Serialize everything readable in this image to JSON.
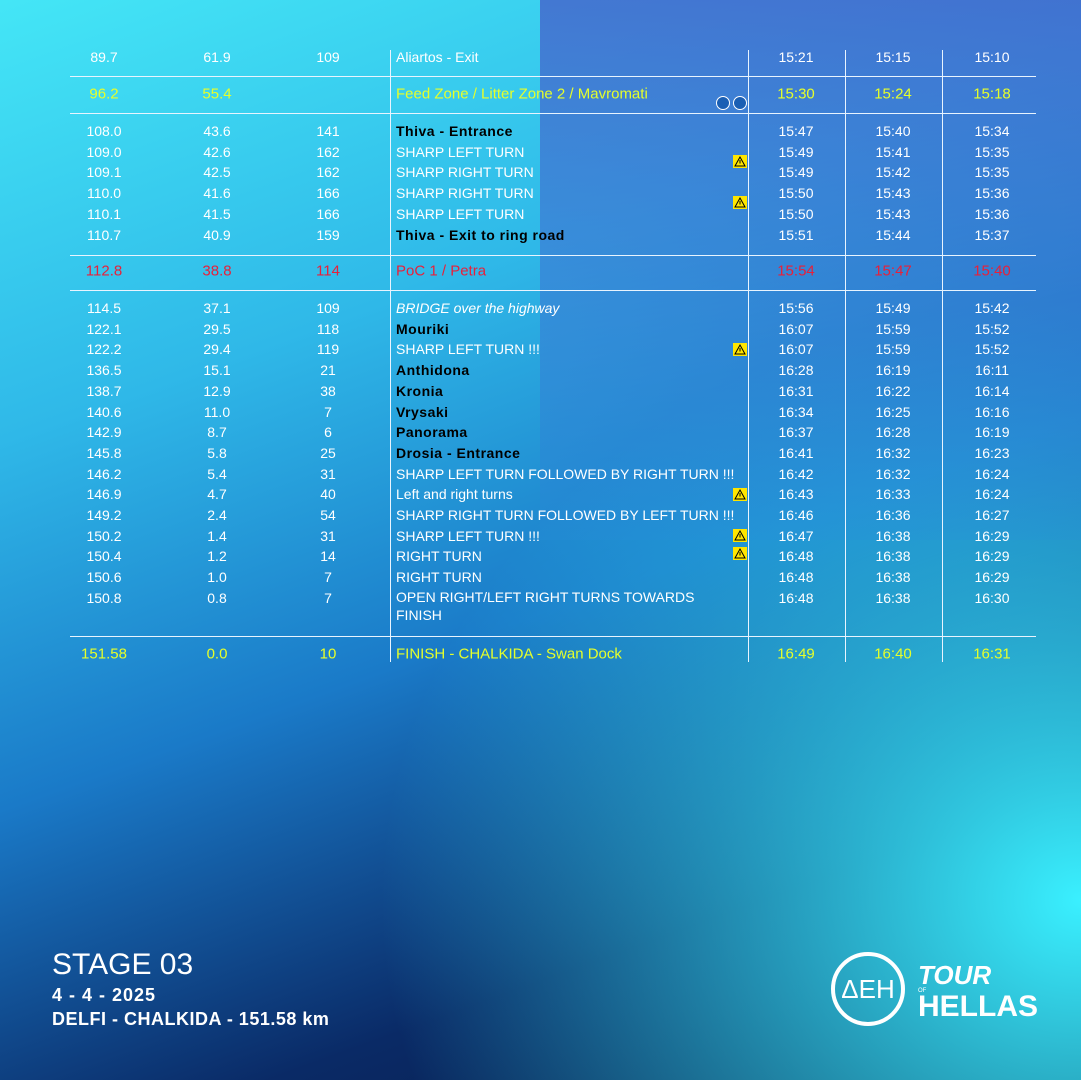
{
  "table": {
    "rows": [
      [
        "89.7",
        "61.9",
        "109",
        "Aliartos - Exit",
        "15:21",
        "15:15",
        "15:10"
      ],
      [
        "96.2",
        "55.4",
        null,
        "Feed Zone / Litter Zone 2 / Mavromati",
        "15:30",
        "15:24",
        "15:18"
      ],
      [
        "108.0",
        "43.6",
        "141",
        "Thiva - Entrance",
        "15:47",
        "15:40",
        "15:34"
      ],
      [
        "109.0",
        "42.6",
        "162",
        "SHARP LEFT TURN",
        "15:49",
        "15:41",
        "15:35"
      ],
      [
        "109.1",
        "42.5",
        "162",
        "SHARP RIGHT TURN",
        "15:49",
        "15:42",
        "15:35"
      ],
      [
        "110.0",
        "41.6",
        "166",
        "SHARP RIGHT TURN",
        "15:50",
        "15:43",
        "15:36"
      ],
      [
        "110.1",
        "41.5",
        "166",
        "SHARP LEFT TURN",
        "15:50",
        "15:43",
        "15:36"
      ],
      [
        "110.7",
        "40.9",
        "159",
        "Thiva - Exit to ring road",
        "15:51",
        "15:44",
        "15:37"
      ],
      [
        "112.8",
        "38.8",
        "114",
        "PoC 1 / Petra",
        "15:54",
        "15:47",
        "15:40"
      ],
      [
        "114.5",
        "37.1",
        "109",
        "BRIDGE over the highway",
        "15:56",
        "15:49",
        "15:42"
      ],
      [
        "122.1",
        "29.5",
        "118",
        "Mouriki",
        "16:07",
        "15:59",
        "15:52"
      ],
      [
        "122.2",
        "29.4",
        "119",
        "SHARP LEFT TURN !!!",
        "16:07",
        "15:59",
        "15:52"
      ],
      [
        "136.5",
        "15.1",
        "21",
        "Anthidona",
        "16:28",
        "16:19",
        "16:11"
      ],
      [
        "138.7",
        "12.9",
        "38",
        "Kronia",
        "16:31",
        "16:22",
        "16:14"
      ],
      [
        "140.6",
        "11.0",
        "7",
        "Vrysaki",
        "16:34",
        "16:25",
        "16:16"
      ],
      [
        "142.9",
        "8.7",
        "6",
        "Panorama",
        "16:37",
        "16:28",
        "16:19"
      ],
      [
        "145.8",
        "5.8",
        "25",
        "Drosia - Entrance",
        "16:41",
        "16:32",
        "16:23"
      ],
      [
        "146.2",
        "5.4",
        "31",
        "SHARP LEFT TURN FOLLOWED BY RIGHT TURN !!!",
        "16:42",
        "16:32",
        "16:24"
      ],
      [
        "146.9",
        "4.7",
        "40",
        "Left and right turns",
        "16:43",
        "16:33",
        "16:24"
      ],
      [
        "149.2",
        "2.4",
        "54",
        "SHARP RIGHT TURN FOLLOWED BY LEFT TURN !!!",
        "16:46",
        "16:36",
        "16:27"
      ],
      [
        "150.2",
        "1.4",
        "31",
        "SHARP LEFT TURN !!!",
        "16:47",
        "16:38",
        "16:29"
      ],
      [
        "150.4",
        "1.2",
        "14",
        "RIGHT TURN",
        "16:48",
        "16:38",
        "16:29"
      ],
      [
        "150.6",
        "1.0",
        "7",
        "RIGHT TURN",
        "16:48",
        "16:38",
        "16:29"
      ],
      [
        "150.8",
        "0.8",
        "7",
        "OPEN RIGHT/LEFT RIGHT TURNS TOWARDS FINISH",
        "16:48",
        "16:38",
        "16:30"
      ],
      [
        "151.58",
        "0.0",
        "10",
        "FINISH - CHALKIDA - Swan Dock",
        "16:49",
        "16:40",
        "16:31"
      ]
    ]
  },
  "footer": {
    "stage": "STAGE 03",
    "date": "4 - 4 - 2025",
    "route": "DELFI - CHALKIDA - 151.58 km"
  },
  "logos": {
    "sponsor": "ΔΕΗ",
    "tour": "TOUR",
    "of": "OF",
    "hellas": "HELLAS"
  }
}
